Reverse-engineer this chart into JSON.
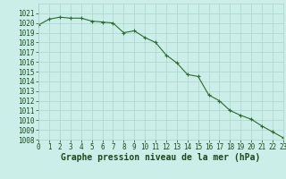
{
  "x": [
    0,
    1,
    2,
    3,
    4,
    5,
    6,
    7,
    8,
    9,
    10,
    11,
    12,
    13,
    14,
    15,
    16,
    17,
    18,
    19,
    20,
    21,
    22,
    23
  ],
  "y": [
    1019.8,
    1020.4,
    1020.6,
    1020.5,
    1020.5,
    1020.2,
    1020.1,
    1020.0,
    1019.0,
    1019.2,
    1018.5,
    1018.0,
    1016.7,
    1015.9,
    1014.7,
    1014.5,
    1012.6,
    1012.0,
    1011.0,
    1010.5,
    1010.1,
    1009.4,
    1008.8,
    1008.2
  ],
  "line_color": "#2d6a2d",
  "marker": "+",
  "marker_size": 3,
  "bg_color": "#cceee8",
  "grid_color": "#aad4cc",
  "xlabel": "Graphe pression niveau de la mer (hPa)",
  "xlabel_fontsize": 7,
  "xlabel_color": "#1a4a1a",
  "tick_label_color": "#1a4a1a",
  "tick_fontsize": 5.5,
  "ylim": [
    1008,
    1022
  ],
  "yticks": [
    1008,
    1009,
    1010,
    1011,
    1012,
    1013,
    1014,
    1015,
    1016,
    1017,
    1018,
    1019,
    1020,
    1021
  ],
  "xticks": [
    0,
    1,
    2,
    3,
    4,
    5,
    6,
    7,
    8,
    9,
    10,
    11,
    12,
    13,
    14,
    15,
    16,
    17,
    18,
    19,
    20,
    21,
    22,
    23
  ],
  "xlim": [
    0,
    23
  ]
}
